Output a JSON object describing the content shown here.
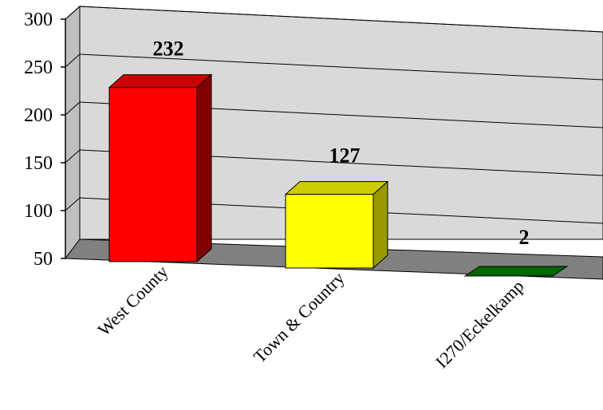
{
  "chart_data": {
    "type": "bar",
    "style": "3d",
    "categories": [
      "West County",
      "Town & Country",
      "I270/Eckelkamp"
    ],
    "values": [
      232,
      127,
      2
    ],
    "data_labels": [
      "232",
      "127",
      "2"
    ],
    "ylim": [
      50,
      300
    ],
    "yticks": [
      "300",
      "250",
      "200",
      "150",
      "100",
      "50"
    ],
    "grid": true,
    "legend": "none",
    "colors": {
      "front": [
        "#ff0000",
        "#ffff00",
        "#006600"
      ],
      "top": [
        "#cc0000",
        "#cccc00",
        "#004d00"
      ],
      "side": [
        "#800000",
        "#999900",
        "#003300"
      ],
      "wall": "#d9d9d9",
      "floor": "#808080"
    }
  }
}
